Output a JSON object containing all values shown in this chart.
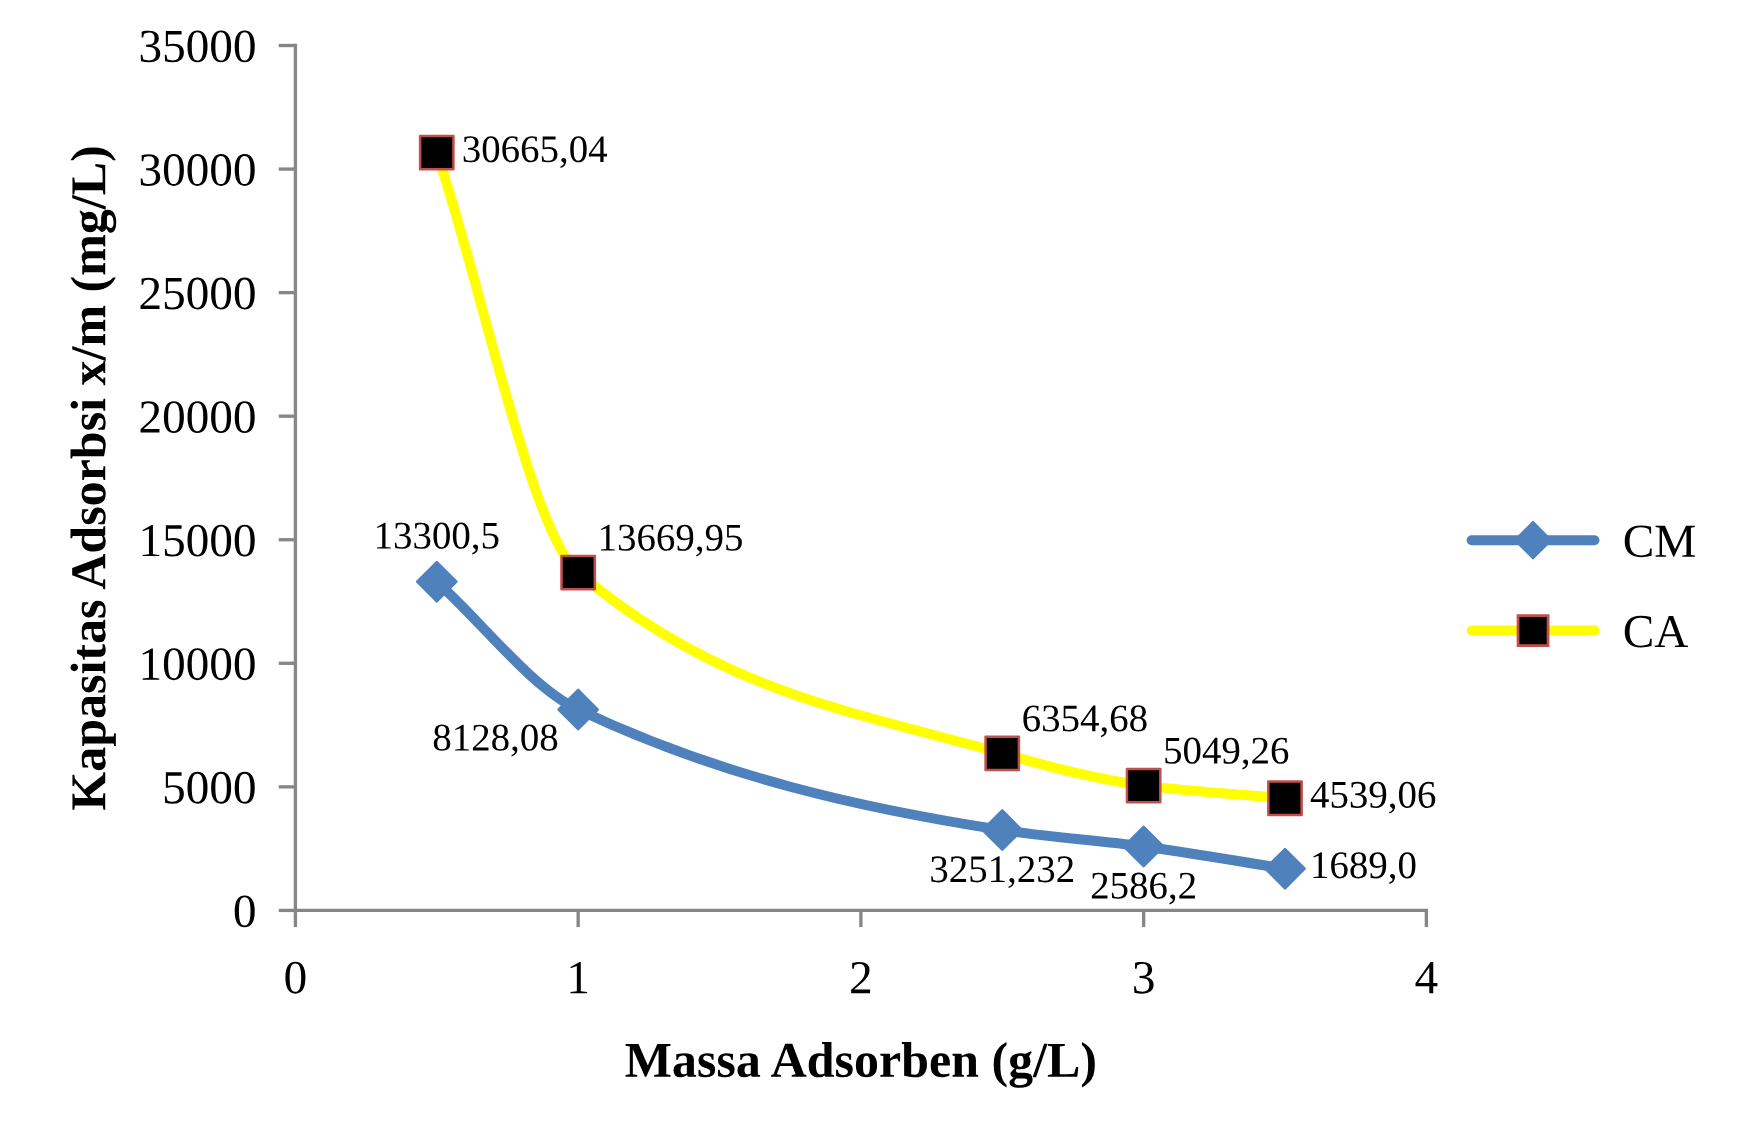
{
  "chart_data": {
    "type": "line",
    "xlabel": "Massa Adsorben (g/L)",
    "ylabel": "Kapasitas Adsorbsi x/m (mg/L)",
    "x": [
      0.5,
      1,
      2.5,
      3,
      3.5
    ],
    "xlim": [
      0,
      4
    ],
    "xticks": [
      0,
      1,
      2,
      3,
      4
    ],
    "ylim": [
      0,
      35000
    ],
    "yticks": [
      0,
      5000,
      10000,
      15000,
      20000,
      25000,
      30000,
      35000
    ],
    "grid": false,
    "legend": "right",
    "line_style": "solid",
    "series": [
      {
        "name": "CM",
        "color": "#4f81bd",
        "marker": "diamond",
        "values": [
          13300.5,
          8128.08,
          3251.232,
          2586.2,
          1689.0
        ],
        "value_labels": [
          "13300,5",
          "8128,08",
          "3251,232",
          "2586,2",
          "1689,0"
        ]
      },
      {
        "name": "CA",
        "color": "#ffff00",
        "marker": "square",
        "colors": [
          "#000000",
          "#000000",
          "#000000",
          "#000000",
          "#000000"
        ],
        "values": [
          30665.04,
          13669.95,
          6354.68,
          5049.26,
          4539.06
        ],
        "value_labels": [
          "30665,04",
          "13669,95",
          "6354,68",
          "5049,26",
          "4539,06"
        ]
      }
    ]
  }
}
